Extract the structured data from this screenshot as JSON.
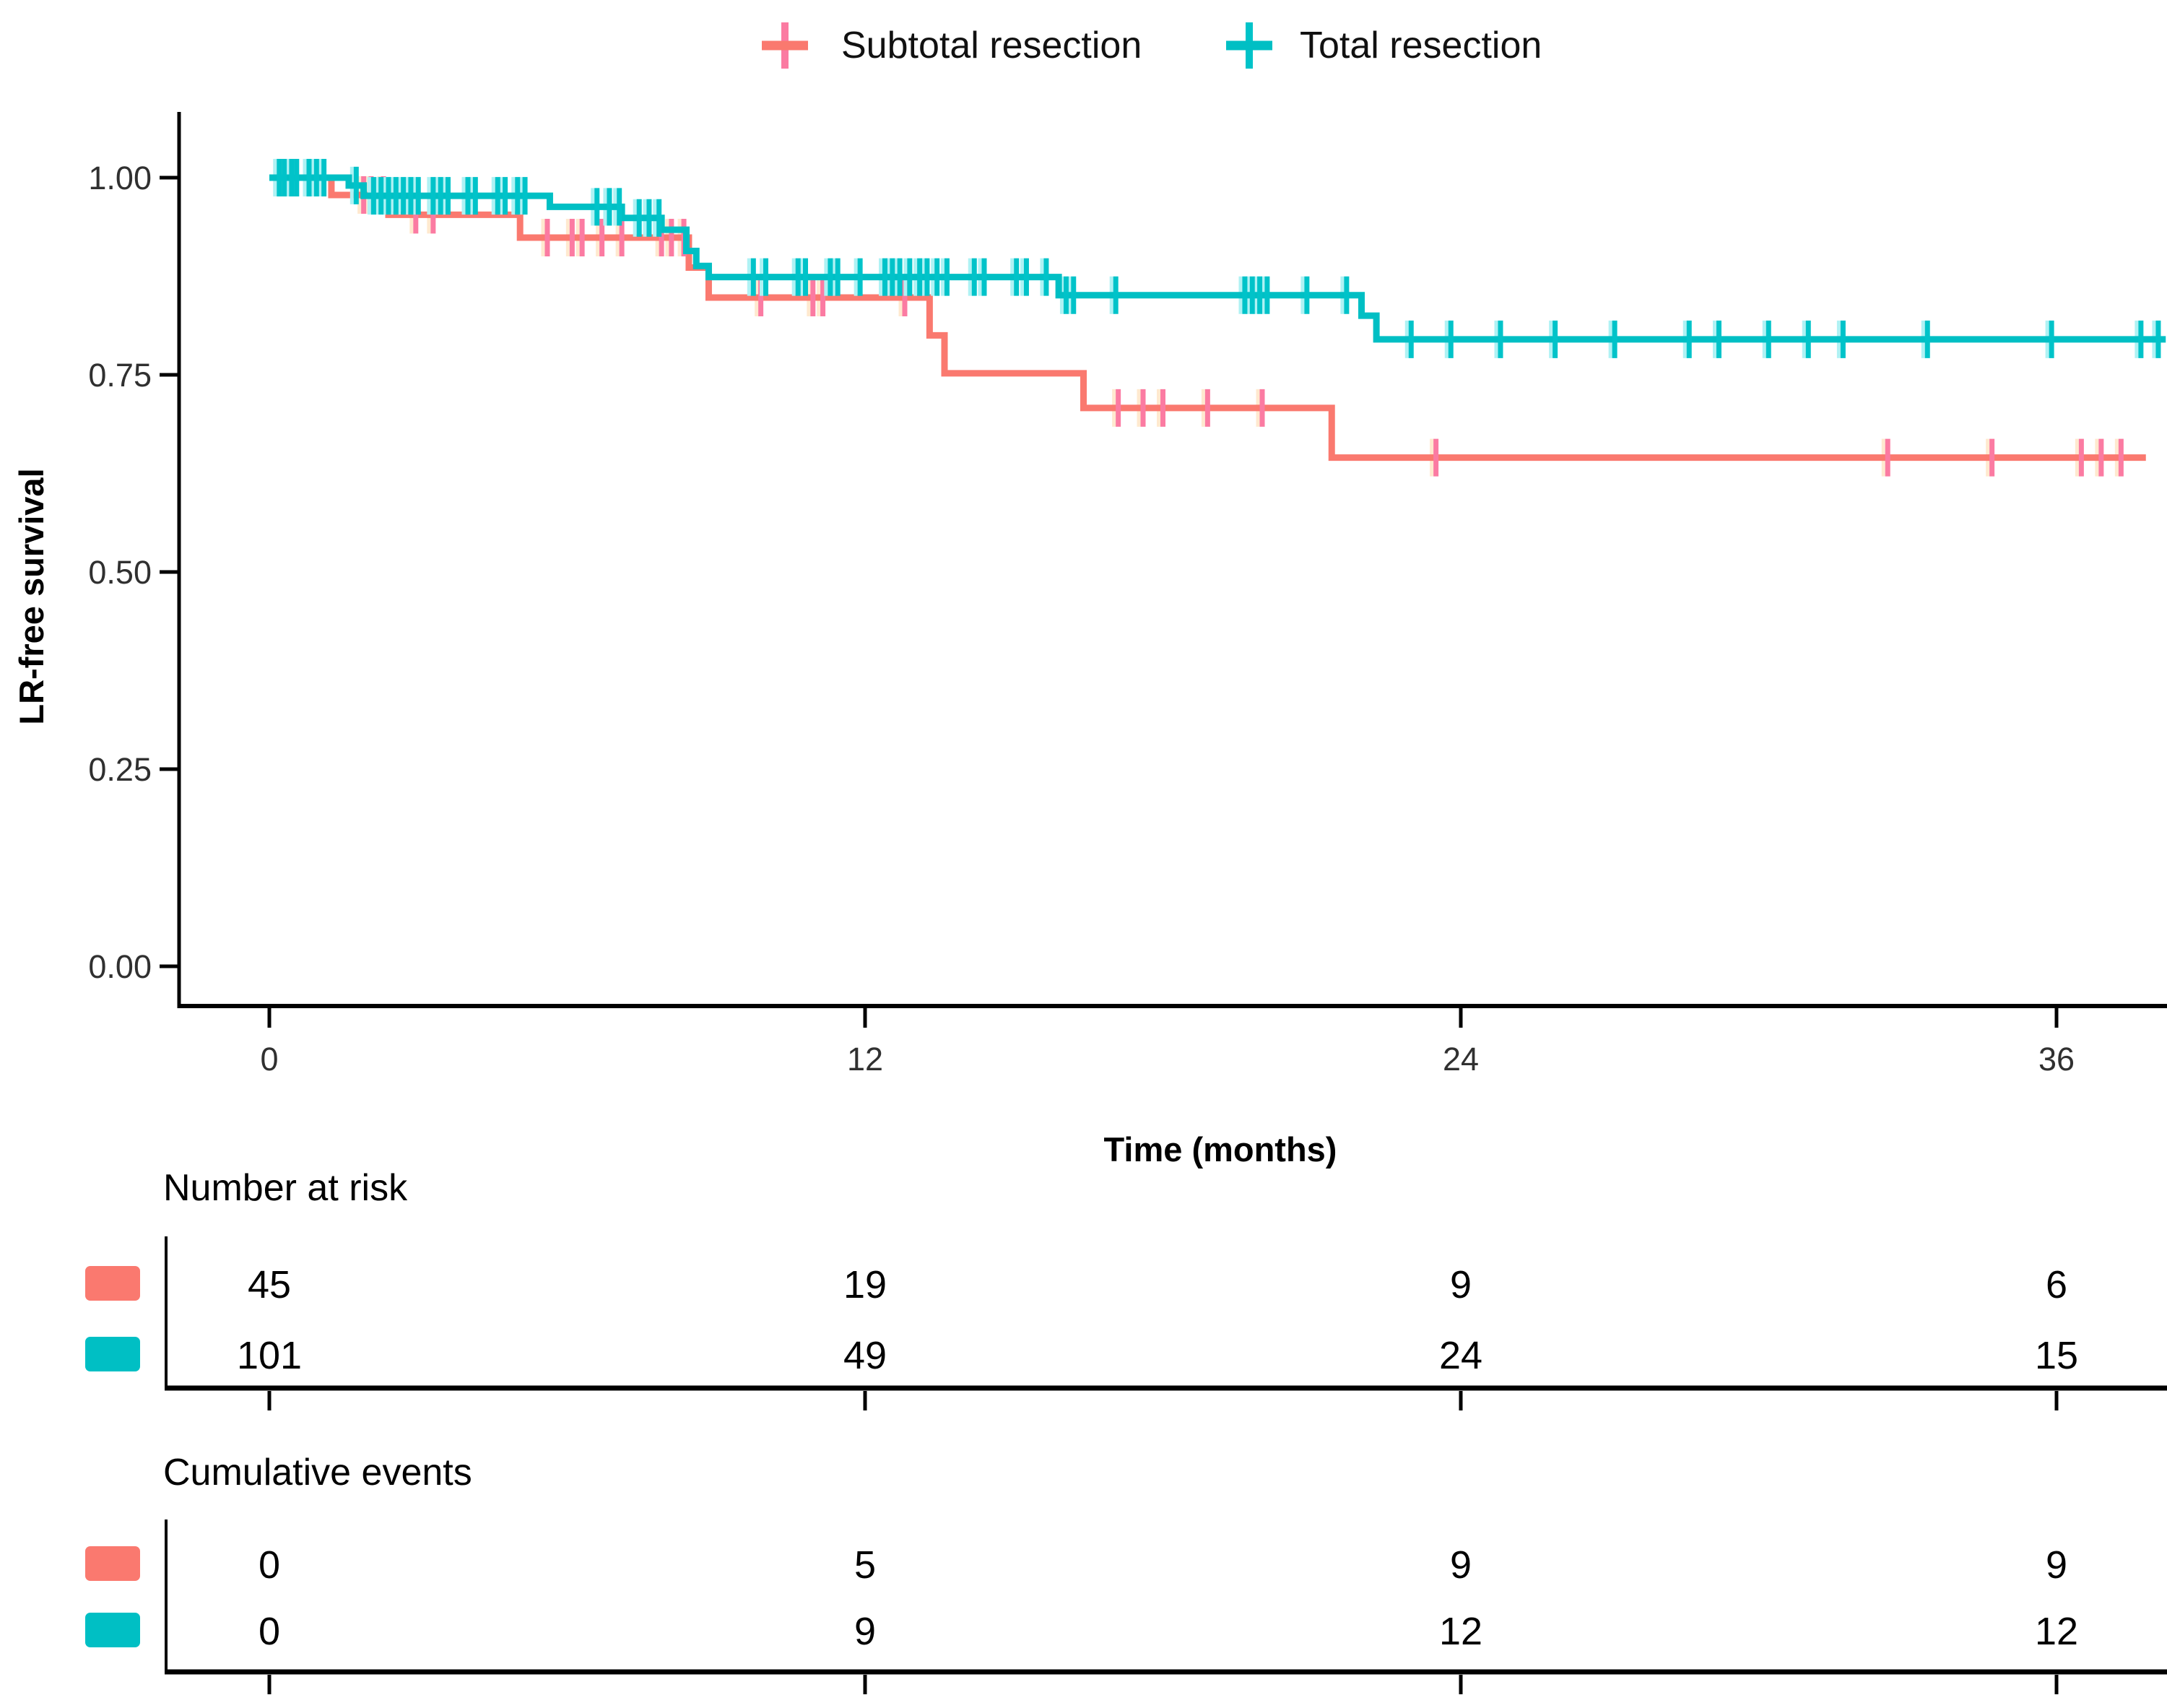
{
  "legend": {
    "items": [
      {
        "label": "Subtotal resection",
        "color": "#fa796f",
        "marker": "plus-icon"
      },
      {
        "label": "Total resection",
        "color": "#00bfc4",
        "marker": "plus-icon"
      }
    ]
  },
  "chart_data": {
    "type": "line",
    "subtype": "kaplan-meier-step",
    "title": "",
    "xlabel": "Time (months)",
    "ylabel": "LR-free survival",
    "x_tick_values": [
      0,
      12,
      24,
      36
    ],
    "x_tick_labels": [
      "0",
      "12",
      "24",
      "36"
    ],
    "y_tick_values": [
      1.0,
      0.75,
      0.5,
      0.25,
      0.0
    ],
    "y_tick_labels": [
      "1.00",
      "0.75",
      "0.50",
      "0.25",
      "0.00"
    ],
    "xlim": [
      0,
      38.2
    ],
    "ylim": [
      0,
      1.05
    ],
    "grid": false,
    "legend_position": "top",
    "series": [
      {
        "name": "Subtotal resection",
        "color": "#fa796f",
        "censor_color": "#fb7ba2",
        "censor_halo": "#ffe9cf",
        "steps": [
          [
            0,
            1.0
          ],
          [
            1.25,
            0.978
          ],
          [
            2.4,
            0.953
          ],
          [
            5.05,
            0.924
          ],
          [
            8.45,
            0.886
          ],
          [
            8.85,
            0.848
          ],
          [
            13.3,
            0.8
          ],
          [
            13.6,
            0.752
          ],
          [
            16.4,
            0.708
          ],
          [
            21.4,
            0.645
          ]
        ],
        "end_time": 37.8,
        "censors": [
          [
            0.3,
            1.0
          ],
          [
            0.42,
            1.0
          ],
          [
            1.9,
            0.978
          ],
          [
            2.05,
            0.978
          ],
          [
            2.3,
            0.978
          ],
          [
            2.95,
            0.953
          ],
          [
            3.3,
            0.953
          ],
          [
            5.6,
            0.924
          ],
          [
            6.1,
            0.924
          ],
          [
            6.3,
            0.924
          ],
          [
            6.7,
            0.924
          ],
          [
            7.1,
            0.924
          ],
          [
            7.9,
            0.924
          ],
          [
            8.1,
            0.924
          ],
          [
            8.35,
            0.924
          ],
          [
            9.9,
            0.848
          ],
          [
            10.95,
            0.848
          ],
          [
            11.15,
            0.848
          ],
          [
            12.8,
            0.848
          ],
          [
            17.1,
            0.708
          ],
          [
            17.6,
            0.708
          ],
          [
            18.0,
            0.708
          ],
          [
            18.9,
            0.708
          ],
          [
            20.0,
            0.708
          ],
          [
            23.5,
            0.645
          ],
          [
            32.6,
            0.645
          ],
          [
            34.7,
            0.645
          ],
          [
            36.5,
            0.645
          ],
          [
            36.9,
            0.645
          ],
          [
            37.3,
            0.645
          ]
        ]
      },
      {
        "name": "Total resection",
        "color": "#00bfc4",
        "censor_color": "#00c3c9",
        "censor_halo": "#aff2f4",
        "steps": [
          [
            0,
            1.0
          ],
          [
            1.6,
            0.99
          ],
          [
            1.9,
            0.977
          ],
          [
            5.65,
            0.963
          ],
          [
            7.1,
            0.949
          ],
          [
            7.9,
            0.934
          ],
          [
            8.4,
            0.907
          ],
          [
            8.6,
            0.888
          ],
          [
            8.85,
            0.874
          ],
          [
            15.9,
            0.851
          ],
          [
            22.0,
            0.825
          ],
          [
            22.3,
            0.795
          ]
        ],
        "end_time": 38.2,
        "censors": [
          [
            0.2,
            1.0
          ],
          [
            0.3,
            1.0
          ],
          [
            0.45,
            1.0
          ],
          [
            0.55,
            1.0
          ],
          [
            0.8,
            1.0
          ],
          [
            0.95,
            1.0
          ],
          [
            1.1,
            1.0
          ],
          [
            1.75,
            0.99
          ],
          [
            2.1,
            0.977
          ],
          [
            2.25,
            0.977
          ],
          [
            2.4,
            0.977
          ],
          [
            2.55,
            0.977
          ],
          [
            2.7,
            0.977
          ],
          [
            2.85,
            0.977
          ],
          [
            3.0,
            0.977
          ],
          [
            3.3,
            0.977
          ],
          [
            3.45,
            0.977
          ],
          [
            3.6,
            0.977
          ],
          [
            4.0,
            0.977
          ],
          [
            4.15,
            0.977
          ],
          [
            4.6,
            0.977
          ],
          [
            4.75,
            0.977
          ],
          [
            5.0,
            0.977
          ],
          [
            5.15,
            0.977
          ],
          [
            6.6,
            0.963
          ],
          [
            6.85,
            0.963
          ],
          [
            7.05,
            0.963
          ],
          [
            7.45,
            0.949
          ],
          [
            7.65,
            0.949
          ],
          [
            7.85,
            0.949
          ],
          [
            9.75,
            0.874
          ],
          [
            10.0,
            0.874
          ],
          [
            10.65,
            0.874
          ],
          [
            10.8,
            0.874
          ],
          [
            11.3,
            0.874
          ],
          [
            11.45,
            0.874
          ],
          [
            11.9,
            0.874
          ],
          [
            12.4,
            0.874
          ],
          [
            12.55,
            0.874
          ],
          [
            12.7,
            0.874
          ],
          [
            12.9,
            0.874
          ],
          [
            13.1,
            0.874
          ],
          [
            13.25,
            0.874
          ],
          [
            13.45,
            0.874
          ],
          [
            13.65,
            0.874
          ],
          [
            14.2,
            0.874
          ],
          [
            14.4,
            0.874
          ],
          [
            15.05,
            0.874
          ],
          [
            15.25,
            0.874
          ],
          [
            15.65,
            0.874
          ],
          [
            16.05,
            0.851
          ],
          [
            16.2,
            0.851
          ],
          [
            17.05,
            0.851
          ],
          [
            19.65,
            0.851
          ],
          [
            19.8,
            0.851
          ],
          [
            19.95,
            0.851
          ],
          [
            20.1,
            0.851
          ],
          [
            20.9,
            0.851
          ],
          [
            21.7,
            0.851
          ],
          [
            23.0,
            0.795
          ],
          [
            23.8,
            0.795
          ],
          [
            24.8,
            0.795
          ],
          [
            25.9,
            0.795
          ],
          [
            27.1,
            0.795
          ],
          [
            28.6,
            0.795
          ],
          [
            29.2,
            0.795
          ],
          [
            30.2,
            0.795
          ],
          [
            31.0,
            0.795
          ],
          [
            31.7,
            0.795
          ],
          [
            33.4,
            0.795
          ],
          [
            35.9,
            0.795
          ],
          [
            37.7,
            0.795
          ],
          [
            38.05,
            0.795
          ]
        ]
      }
    ]
  },
  "risk_table": {
    "title": "Number at risk",
    "rows": [
      {
        "group": "Subtotal resection",
        "color": "#fa796f",
        "values": [
          "45",
          "19",
          "9",
          "6"
        ]
      },
      {
        "group": "Total resection",
        "color": "#00bfc4",
        "values": [
          "101",
          "49",
          "24",
          "15"
        ]
      }
    ]
  },
  "events_table": {
    "title": "Cumulative events",
    "rows": [
      {
        "group": "Subtotal resection",
        "color": "#fa796f",
        "values": [
          "0",
          "5",
          "9",
          "9"
        ]
      },
      {
        "group": "Total resection",
        "color": "#00bfc4",
        "values": [
          "0",
          "9",
          "12",
          "12"
        ]
      }
    ]
  }
}
